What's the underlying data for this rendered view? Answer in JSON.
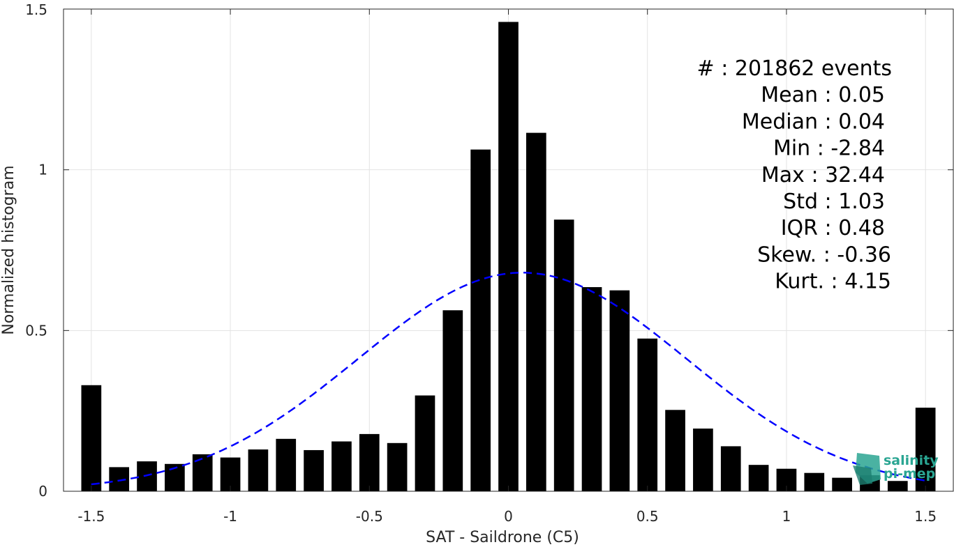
{
  "chart_data": {
    "type": "bar",
    "xlabel": "SAT - Saildrone (C5)",
    "ylabel": "Normalized histogram",
    "xlim": [
      -1.6,
      1.6
    ],
    "ylim": [
      0,
      1.5
    ],
    "xticks": [
      -1.5,
      -1,
      -0.5,
      0,
      0.5,
      1,
      1.5
    ],
    "xtick_labels": [
      "-1.5",
      "-1",
      "-0.5",
      "0",
      "0.5",
      "1",
      "1.5"
    ],
    "yticks": [
      0,
      0.5,
      1,
      1.5
    ],
    "ytick_labels": [
      "0",
      "0.5",
      "1",
      "1.5"
    ],
    "grid": true,
    "bar_color": "#000000",
    "bin_width": 0.1,
    "x": [
      -1.5,
      -1.4,
      -1.3,
      -1.2,
      -1.1,
      -1.0,
      -0.9,
      -0.8,
      -0.7,
      -0.6,
      -0.5,
      -0.4,
      -0.3,
      -0.2,
      -0.1,
      0.0,
      0.1,
      0.2,
      0.3,
      0.4,
      0.5,
      0.6,
      0.7,
      0.8,
      0.9,
      1.0,
      1.1,
      1.2,
      1.3,
      1.4,
      1.5
    ],
    "values": [
      0.33,
      0.075,
      0.093,
      0.085,
      0.115,
      0.105,
      0.13,
      0.163,
      0.128,
      0.155,
      0.178,
      0.15,
      0.298,
      0.563,
      1.063,
      1.46,
      1.115,
      0.845,
      0.635,
      0.625,
      0.475,
      0.253,
      0.195,
      0.14,
      0.082,
      0.07,
      0.057,
      0.042,
      0.05,
      0.032,
      0.26
    ],
    "fit": {
      "type": "normal",
      "mean": 0.05,
      "std": 0.59,
      "peak": 0.68,
      "x_range": [
        -1.5,
        1.5
      ],
      "color": "#0000ff",
      "style": "dashed"
    },
    "stats": [
      "#  : 201862 events",
      "Mean : 0.05",
      "Median : 0.04",
      "Min : -2.84",
      "Max : 32.44",
      "Std : 1.03",
      "IQR : 0.48",
      "Skew. : -0.36",
      "Kurt. : 4.15"
    ]
  },
  "logo": {
    "line1": "salinity",
    "line2": "pi-mep",
    "color": "#2aa592"
  }
}
